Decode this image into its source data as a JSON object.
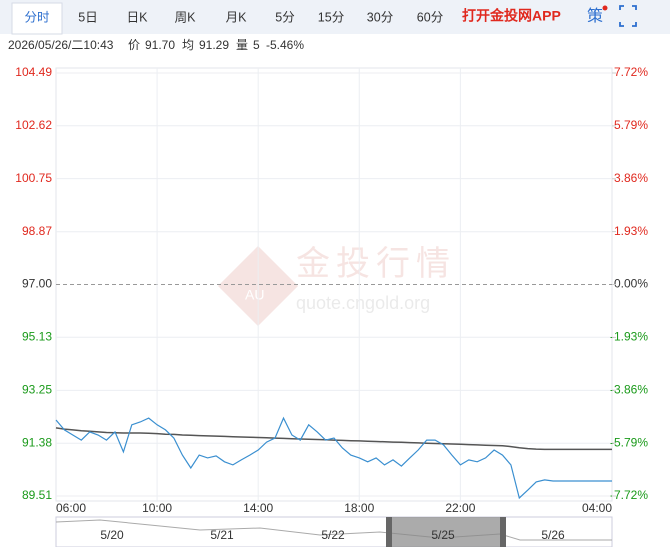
{
  "tabs": [
    "分时",
    "5日",
    "日K",
    "周K",
    "月K",
    "5分",
    "15分",
    "30分",
    "60分"
  ],
  "app_link": "打开金投网APP",
  "strategy": "策",
  "info": {
    "time": "2026/05/26/二10:43",
    "price_label": "价",
    "price": "91.70",
    "avg_label": "均",
    "avg": "91.29",
    "volume_label": "量",
    "volume": "5",
    "change": "-5.46%"
  },
  "watermark": {
    "title": "金投行情",
    "url": "quote.cngold.org",
    "logo": "AU"
  },
  "navigator": {
    "dates": [
      "5/20",
      "5/21",
      "5/22",
      "5/25",
      "5/26"
    ]
  },
  "chart_data": {
    "type": "line",
    "x": [
      "06:00",
      "06:20",
      "06:40",
      "07:00",
      "07:20",
      "07:40",
      "08:00",
      "08:20",
      "08:40",
      "09:00",
      "09:20",
      "09:40",
      "10:00",
      "10:20",
      "10:40",
      "11:00",
      "11:20",
      "11:40",
      "12:00",
      "12:20",
      "12:40",
      "13:00",
      "13:20",
      "13:40",
      "14:00",
      "14:20",
      "14:40",
      "15:00",
      "15:20",
      "15:40",
      "16:00",
      "16:20",
      "16:40",
      "17:00",
      "17:20",
      "17:40",
      "18:00",
      "18:20",
      "18:40",
      "19:00",
      "19:20",
      "19:40",
      "20:00",
      "20:20",
      "20:40",
      "21:00",
      "21:20",
      "21:40",
      "22:00",
      "22:20",
      "22:40",
      "23:00",
      "23:20",
      "23:40",
      "00:00",
      "00:20",
      "00:40",
      "01:00",
      "01:20",
      "01:40",
      "02:00",
      "02:20",
      "02:40",
      "03:00",
      "03:20",
      "03:40",
      "04:00"
    ],
    "series": [
      {
        "name": "价",
        "color": "#3a8fd0",
        "values": [
          92.2,
          91.85,
          91.67,
          91.49,
          91.78,
          91.67,
          91.49,
          91.78,
          91.07,
          92.03,
          92.13,
          92.27,
          92.03,
          91.85,
          91.56,
          90.96,
          90.5,
          90.96,
          90.86,
          90.93,
          90.72,
          90.61,
          90.79,
          90.96,
          91.14,
          91.42,
          91.56,
          92.27,
          91.67,
          91.49,
          92.03,
          91.78,
          91.49,
          91.56,
          91.21,
          90.96,
          90.86,
          90.72,
          90.86,
          90.61,
          90.79,
          90.57,
          90.86,
          91.14,
          91.49,
          91.49,
          91.32,
          90.96,
          90.61,
          90.79,
          90.72,
          90.86,
          91.14,
          90.96,
          90.61,
          89.44,
          89.72,
          90.01,
          90.08,
          90.04,
          90.04,
          90.04,
          90.04,
          90.04,
          90.04,
          90.04,
          90.04
        ]
      },
      {
        "name": "均",
        "color": "#555555",
        "values": [
          91.92,
          91.88,
          91.85,
          91.82,
          91.8,
          91.78,
          91.76,
          91.75,
          91.74,
          91.74,
          91.74,
          91.73,
          91.72,
          91.7,
          91.69,
          91.67,
          91.66,
          91.65,
          91.64,
          91.63,
          91.62,
          91.61,
          91.6,
          91.59,
          91.58,
          91.57,
          91.56,
          91.55,
          91.54,
          91.53,
          91.52,
          91.51,
          91.5,
          91.49,
          91.48,
          91.47,
          91.46,
          91.45,
          91.44,
          91.43,
          91.42,
          91.41,
          91.4,
          91.39,
          91.38,
          91.37,
          91.36,
          91.35,
          91.34,
          91.33,
          91.32,
          91.31,
          91.3,
          91.29,
          91.26,
          91.22,
          91.19,
          91.17,
          91.16,
          91.16,
          91.16,
          91.16,
          91.16,
          91.16,
          91.16,
          91.16,
          91.16
        ]
      }
    ],
    "xticks": [
      "06:00",
      "10:00",
      "14:00",
      "18:00",
      "22:00",
      "04:00"
    ],
    "ylim": [
      89.51,
      104.49
    ],
    "yticks": [
      104.49,
      102.62,
      100.75,
      98.87,
      {
        "value": 97,
        "label": "97.00"
      },
      95.13,
      93.25,
      91.38,
      89.51
    ],
    "y2lim": [
      -7.72,
      7.72
    ],
    "y2ticks": [
      {
        "value": 7.72,
        "label": "7.72%"
      },
      {
        "value": 5.79,
        "label": "5.79%"
      },
      {
        "value": 3.86,
        "label": "3.86%"
      },
      {
        "value": 1.93,
        "label": "1.93%"
      },
      {
        "value": 0,
        "label": "0.00%"
      },
      {
        "value": -1.93,
        "label": "-1.93%"
      },
      {
        "value": -3.86,
        "label": "-3.86%"
      },
      {
        "value": -5.79,
        "label": "-5.79%"
      },
      {
        "value": -7.72,
        "label": "-7.72%"
      }
    ],
    "grid": true
  }
}
